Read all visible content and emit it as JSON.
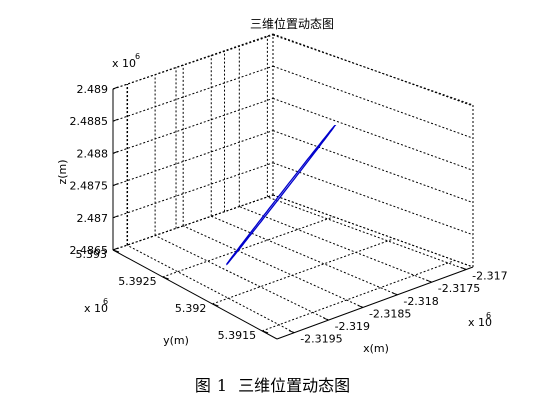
{
  "caption": {
    "label": "图",
    "number": "1",
    "text": "三维位置动态图"
  },
  "chart_data": {
    "type": "line3d",
    "title": "三维位置动态图",
    "xlabel": "x(m)",
    "ylabel": "y(m)",
    "zlabel": "z(m)",
    "xlim": [
      -2.31975,
      -2.3169
    ],
    "ylim": [
      5.39135,
      5.393
    ],
    "zlim": [
      2.4865,
      2.489
    ],
    "x_ticks": [
      "-2.3195",
      "-2.319",
      "-2.3185",
      "-2.318",
      "-2.3175",
      "-2.317"
    ],
    "y_ticks": [
      "5.3915",
      "5.392",
      "5.3925",
      "5.393"
    ],
    "z_ticks": [
      "2.4865",
      "2.487",
      "2.4875",
      "2.488",
      "2.4885",
      "2.489"
    ],
    "x_multiplier": "x 10",
    "y_multiplier": "x 10",
    "z_multiplier": "x 10",
    "multiplier_exp": "6",
    "grid": true,
    "line_color": "#0000cc",
    "ellipse_endpoints": {
      "start": {
        "x": -2.3194,
        "y": 5.3921,
        "z": 2.48689
      },
      "end": {
        "x": -2.31797,
        "y": 5.392,
        "z": 2.48857
      }
    },
    "ellipse_minor_z": 2.1e-05
  }
}
